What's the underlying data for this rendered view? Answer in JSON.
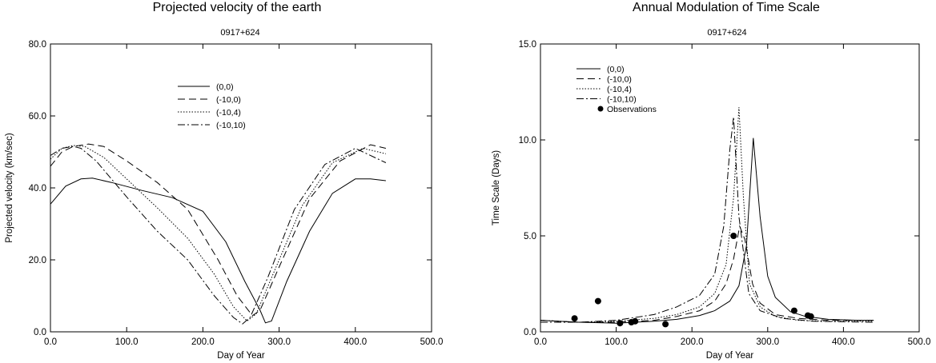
{
  "chart_data": [
    {
      "type": "line",
      "title": "Projected velocity of the earth",
      "subtitle": "0917+624",
      "xlabel": "Day of Year",
      "ylabel": "Projected velocity (km/sec)",
      "xlim": [
        0,
        500
      ],
      "ylim": [
        0,
        80
      ],
      "xticks": [
        0,
        100,
        200,
        300,
        400,
        500
      ],
      "yticks": [
        0,
        20,
        40,
        60,
        80
      ],
      "xtick_labels": [
        "0.0",
        "100.0",
        "200.0",
        "300.0",
        "400.0",
        "500.0"
      ],
      "ytick_labels": [
        "0.0",
        "20.0",
        "40.0",
        "60.0",
        "80.0"
      ],
      "legend_position": "upper-center",
      "series": [
        {
          "name": "(0,0)",
          "style": "solid",
          "x": [
            0,
            20,
            40,
            55,
            80,
            120,
            160,
            200,
            230,
            255,
            275,
            282,
            290,
            310,
            340,
            370,
            400,
            420,
            440
          ],
          "y": [
            35.5,
            40.5,
            42.5,
            42.7,
            41.5,
            39.3,
            37.3,
            33.5,
            25,
            14,
            6,
            2.5,
            3,
            14,
            28,
            38.5,
            42.5,
            42.5,
            42
          ]
        },
        {
          "name": "(-10,0)",
          "style": "dashed",
          "x": [
            0,
            15,
            30,
            50,
            70,
            100,
            140,
            180,
            220,
            245,
            265,
            275,
            300,
            340,
            380,
            420,
            440
          ],
          "y": [
            46,
            50,
            51.5,
            52.2,
            51.5,
            47.5,
            41.5,
            34,
            20,
            10,
            4.5,
            6,
            18,
            37,
            47.5,
            52,
            51
          ]
        },
        {
          "name": "(-10,4)",
          "style": "dotted",
          "x": [
            0,
            15,
            30,
            45,
            70,
            100,
            140,
            180,
            215,
            240,
            258,
            270,
            290,
            330,
            370,
            410,
            440
          ],
          "y": [
            48,
            51,
            51.8,
            51.5,
            48.5,
            42.5,
            34.5,
            26,
            16,
            7,
            3,
            5,
            15,
            35,
            47,
            51,
            49.5
          ]
        },
        {
          "name": "(-10,10)",
          "style": "dashdot",
          "x": [
            0,
            15,
            30,
            40,
            60,
            100,
            140,
            180,
            215,
            240,
            252,
            262,
            285,
            320,
            360,
            400,
            440
          ],
          "y": [
            49,
            51,
            51.5,
            51,
            47.5,
            37.5,
            28,
            20,
            10,
            4,
            2.2,
            4,
            15,
            34,
            46.5,
            51,
            47
          ]
        }
      ]
    },
    {
      "type": "line",
      "title": "Annual Modulation of Time Scale",
      "subtitle": "0917+624",
      "xlabel": "Day of Year",
      "ylabel": "Time Scale (Days)",
      "xlim": [
        0,
        500
      ],
      "ylim": [
        0,
        15
      ],
      "xticks": [
        0,
        100,
        200,
        300,
        400,
        500
      ],
      "yticks": [
        0,
        5,
        10,
        15
      ],
      "xtick_labels": [
        "0.0",
        "100.0",
        "200.0",
        "300.0",
        "400.0",
        "500.0"
      ],
      "ytick_labels": [
        "0.0",
        "5.0",
        "10.0",
        "15.0"
      ],
      "legend_position": "upper-left",
      "series": [
        {
          "name": "(0,0)",
          "style": "solid",
          "x": [
            0,
            50,
            100,
            150,
            180,
            210,
            230,
            250,
            262,
            272,
            281,
            290,
            300,
            310,
            330,
            350,
            380,
            420,
            440
          ],
          "y": [
            0.6,
            0.5,
            0.45,
            0.55,
            0.65,
            0.85,
            1.1,
            1.6,
            2.4,
            4.5,
            10.1,
            6,
            2.9,
            1.8,
            1.05,
            0.8,
            0.65,
            0.6,
            0.6
          ]
        },
        {
          "name": "(-10,0)",
          "style": "dashed",
          "x": [
            0,
            50,
            100,
            150,
            180,
            210,
            230,
            245,
            255,
            263,
            270,
            280,
            290,
            310,
            340,
            380,
            440
          ],
          "y": [
            0.6,
            0.5,
            0.5,
            0.6,
            0.8,
            1.1,
            1.6,
            2.5,
            3.8,
            5.5,
            4.8,
            2.5,
            1.5,
            0.9,
            0.7,
            0.6,
            0.6
          ]
        },
        {
          "name": "(-10,4)",
          "style": "dotted",
          "x": [
            0,
            50,
            100,
            150,
            180,
            210,
            230,
            245,
            255,
            262,
            268,
            276,
            290,
            310,
            340,
            380,
            440
          ],
          "y": [
            0.6,
            0.5,
            0.55,
            0.7,
            0.9,
            1.3,
            2.0,
            3.5,
            7,
            11.7,
            7,
            2.5,
            1.3,
            0.8,
            0.6,
            0.55,
            0.55
          ]
        },
        {
          "name": "(-10,10)",
          "style": "dashdot",
          "x": [
            0,
            50,
            100,
            150,
            180,
            210,
            230,
            242,
            250,
            255,
            262,
            275,
            290,
            320,
            360,
            440
          ],
          "y": [
            0.5,
            0.5,
            0.6,
            0.9,
            1.3,
            1.9,
            3.0,
            5.5,
            9.5,
            11.2,
            6,
            2.0,
            1.1,
            0.7,
            0.55,
            0.5
          ]
        }
      ],
      "observations": {
        "name": "Observations",
        "x": [
          45,
          76,
          105,
          120,
          125,
          165,
          255,
          335,
          353,
          357
        ],
        "y": [
          0.7,
          1.6,
          0.45,
          0.5,
          0.55,
          0.4,
          5.0,
          1.1,
          0.85,
          0.8
        ]
      }
    }
  ]
}
